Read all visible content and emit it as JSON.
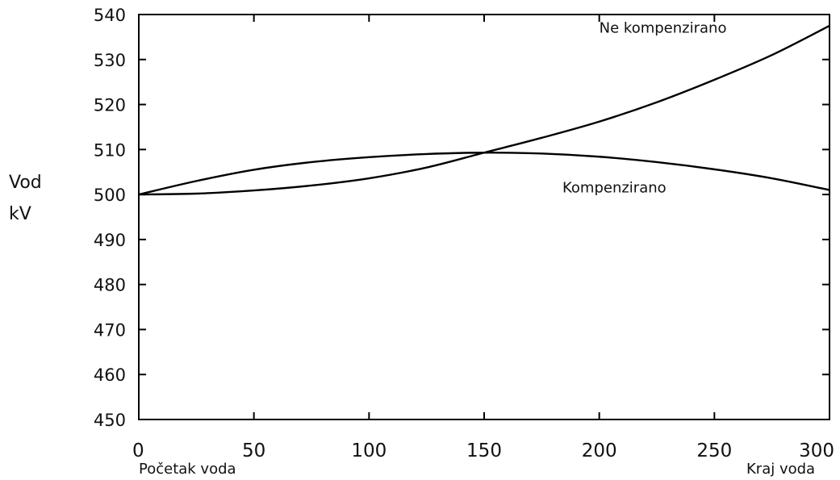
{
  "chart_data": {
    "type": "line",
    "ylabel_lines": [
      "Vod",
      "kV"
    ],
    "x_start_label": "Početak voda",
    "x_end_label": "Kraj voda",
    "xlim": [
      0,
      300
    ],
    "ylim": [
      450,
      540
    ],
    "xticks": [
      0,
      50,
      100,
      150,
      200,
      250,
      300
    ],
    "yticks": [
      450,
      460,
      470,
      480,
      490,
      500,
      510,
      520,
      530,
      540
    ],
    "grid": false,
    "series": [
      {
        "name": "Ne kompenzirano",
        "x": [
          0,
          25,
          50,
          75,
          100,
          125,
          150,
          175,
          200,
          225,
          250,
          275,
          300
        ],
        "y": [
          500,
          500.2,
          500.9,
          502.0,
          503.6,
          506.0,
          509.3,
          512.6,
          516.2,
          520.5,
          525.5,
          531.0,
          537.5
        ]
      },
      {
        "name": "Kompenzirano",
        "x": [
          0,
          25,
          50,
          75,
          100,
          125,
          150,
          175,
          200,
          225,
          250,
          275,
          300
        ],
        "y": [
          500,
          503.0,
          505.5,
          507.2,
          508.3,
          509.0,
          509.3,
          509.1,
          508.4,
          507.2,
          505.6,
          503.6,
          501.0
        ]
      }
    ],
    "annotations": [
      {
        "text": "Ne kompenzirano",
        "x": 200,
        "y": 536
      },
      {
        "text": "Kompenzirano",
        "x": 184,
        "y": 500.5
      }
    ]
  }
}
